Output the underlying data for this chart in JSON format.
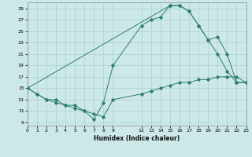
{
  "bg_color": "#cde8e8",
  "line_color": "#2e7d72",
  "grid_color": "#aacfcf",
  "xlabel": "Humidex (Indice chaleur)",
  "xlim": [
    0,
    23
  ],
  "ylim": [
    8.5,
    30
  ],
  "xticks": [
    0,
    1,
    2,
    3,
    4,
    5,
    6,
    7,
    8,
    9,
    12,
    13,
    14,
    15,
    16,
    17,
    18,
    19,
    20,
    21,
    22,
    23
  ],
  "yticks": [
    9,
    11,
    13,
    15,
    17,
    19,
    21,
    23,
    25,
    27,
    29
  ],
  "series": [
    {
      "x": [
        0,
        1,
        2,
        3,
        4,
        5,
        6,
        7,
        8,
        9,
        12,
        13,
        14,
        15,
        16,
        17,
        18,
        19,
        20,
        21,
        22,
        23
      ],
      "y": [
        15,
        14,
        13,
        13,
        12,
        12,
        11,
        10.5,
        10,
        13,
        14,
        14.5,
        15,
        15.5,
        16,
        16,
        16.5,
        16.5,
        17,
        17,
        17,
        16
      ]
    },
    {
      "x": [
        0,
        1,
        2,
        3,
        4,
        5,
        6,
        7,
        8,
        9,
        12,
        13,
        14,
        15,
        16,
        17,
        18,
        19,
        20,
        21,
        22,
        23
      ],
      "y": [
        15,
        14,
        13,
        12.5,
        12,
        11.5,
        11,
        9.5,
        12.5,
        19,
        26,
        27,
        27.5,
        29.5,
        29.5,
        28.5,
        26,
        23.5,
        21,
        18,
        16,
        16
      ]
    },
    {
      "x": [
        0,
        15,
        16,
        17,
        18,
        19,
        20,
        21,
        22,
        23
      ],
      "y": [
        15,
        29.5,
        29.5,
        28.5,
        26,
        23.5,
        24,
        21,
        16,
        16
      ]
    }
  ]
}
